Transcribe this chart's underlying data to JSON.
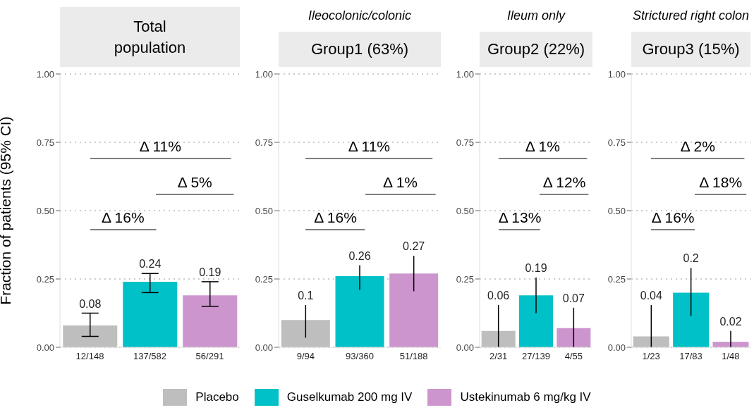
{
  "chart_data": [
    {
      "type": "bar",
      "title": "Total population",
      "ylabel": "Fraction of patients (95% CI)",
      "categories": [
        "12/148",
        "137/582",
        "56/291"
      ],
      "stacked": true,
      "data_labels": true,
      "grid": "y",
      "legend": "bottom",
      "ylim": [
        0,
        1
      ],
      "yticks": [
        {
          "value": 0,
          "label": "0.00"
        },
        {
          "value": 0.25,
          "label": "0.25"
        },
        {
          "value": 0.5,
          "label": "0.50"
        },
        {
          "value": 0.75,
          "label": "0.75"
        },
        {
          "value": 1,
          "label": "1.00"
        }
      ],
      "annotations": [
        "Δ 11%",
        "Δ 5%",
        "Δ 16%"
      ],
      "series": [
        {
          "name": "Placebo",
          "color": "#bebebe",
          "values": [
            0.08,
            null,
            null
          ],
          "errors": [
            [
              0.04,
              0.125
            ],
            null,
            null
          ]
        },
        {
          "name": "Guselkumab 200 mg IV",
          "color": "#00c1c7",
          "values": [
            null,
            0.24,
            null
          ],
          "errors": [
            null,
            [
              0.2,
              0.27
            ],
            null
          ]
        },
        {
          "name": "Ustekinumab 6 mg/kg IV",
          "color": "#cd95cd",
          "values": [
            null,
            null,
            0.19
          ],
          "errors": [
            null,
            null,
            [
              0.15,
              0.24
            ]
          ]
        }
      ]
    },
    {
      "type": "bar",
      "subtitle": "Ileocolonic/colonic",
      "title": "Group1 (63%)",
      "categories": [
        "9/94",
        "93/360",
        "51/188"
      ],
      "stacked": true,
      "data_labels": true,
      "grid": "y",
      "ylim": [
        0,
        1
      ],
      "yticks": [
        {
          "value": 0,
          "label": "0.00"
        },
        {
          "value": 0.25,
          "label": "0.25"
        },
        {
          "value": 0.5,
          "label": "0.50"
        },
        {
          "value": 0.75,
          "label": "0.75"
        },
        {
          "value": 1,
          "label": "1.00"
        }
      ],
      "annotations": [
        "Δ 11%",
        "Δ 1%",
        "Δ 16%"
      ],
      "series": [
        {
          "color": "#bebebe",
          "values": [
            0.1,
            null,
            null
          ],
          "errors": [
            [
              0.035,
              0.155
            ],
            null,
            null
          ]
        },
        {
          "color": "#00c1c7",
          "values": [
            null,
            0.26,
            null
          ],
          "errors": [
            null,
            [
              0.21,
              0.3
            ],
            null
          ]
        },
        {
          "color": "#cd95cd",
          "values": [
            null,
            null,
            0.27
          ],
          "errors": [
            null,
            null,
            [
              0.205,
              0.335
            ]
          ]
        }
      ]
    },
    {
      "type": "bar",
      "subtitle": "Ileum only",
      "title": "Group2 (22%)",
      "categories": [
        "2/31",
        "27/139",
        "4/55"
      ],
      "stacked": true,
      "data_labels": true,
      "grid": "y",
      "ylim": [
        0,
        1
      ],
      "yticks": [
        {
          "value": 0,
          "label": "0.00"
        },
        {
          "value": 0.25,
          "label": "0.25"
        },
        {
          "value": 0.5,
          "label": "0.50"
        },
        {
          "value": 0.75,
          "label": "0.75"
        },
        {
          "value": 1,
          "label": "1.00"
        }
      ],
      "annotations": [
        "Δ 1%",
        "Δ 12%",
        "Δ 13%"
      ],
      "series": [
        {
          "color": "#bebebe",
          "values": [
            0.06,
            null,
            null
          ],
          "errors": [
            [
              0,
              0.155
            ],
            null,
            null
          ]
        },
        {
          "color": "#00c1c7",
          "values": [
            null,
            0.19,
            null
          ],
          "errors": [
            null,
            [
              0.125,
              0.255
            ],
            null
          ]
        },
        {
          "color": "#cd95cd",
          "values": [
            null,
            null,
            0.07
          ],
          "errors": [
            null,
            null,
            [
              0,
              0.145
            ]
          ]
        }
      ]
    },
    {
      "type": "bar",
      "subtitle": "Strictured right colon",
      "title": "Group3 (15%)",
      "categories": [
        "1/23",
        "17/83",
        "1/48"
      ],
      "stacked": true,
      "data_labels": true,
      "grid": "y",
      "ylim": [
        0,
        1
      ],
      "yticks": [
        {
          "value": 0,
          "label": "0.00"
        },
        {
          "value": 0.25,
          "label": "0.25"
        },
        {
          "value": 0.5,
          "label": "0.50"
        },
        {
          "value": 0.75,
          "label": "0.75"
        },
        {
          "value": 1,
          "label": "1.00"
        }
      ],
      "annotations": [
        "Δ 2%",
        "Δ 18%",
        "Δ 16%"
      ],
      "series": [
        {
          "color": "#bebebe",
          "values": [
            0.04,
            null,
            null
          ],
          "errors": [
            [
              0,
              0.155
            ],
            null,
            null
          ]
        },
        {
          "color": "#00c1c7",
          "values": [
            null,
            0.2,
            null
          ],
          "errors": [
            null,
            [
              0.115,
              0.29
            ],
            null
          ]
        },
        {
          "color": "#cd95cd",
          "values": [
            null,
            null,
            0.02
          ],
          "errors": [
            null,
            null,
            [
              0,
              0.06
            ]
          ]
        }
      ]
    }
  ]
}
